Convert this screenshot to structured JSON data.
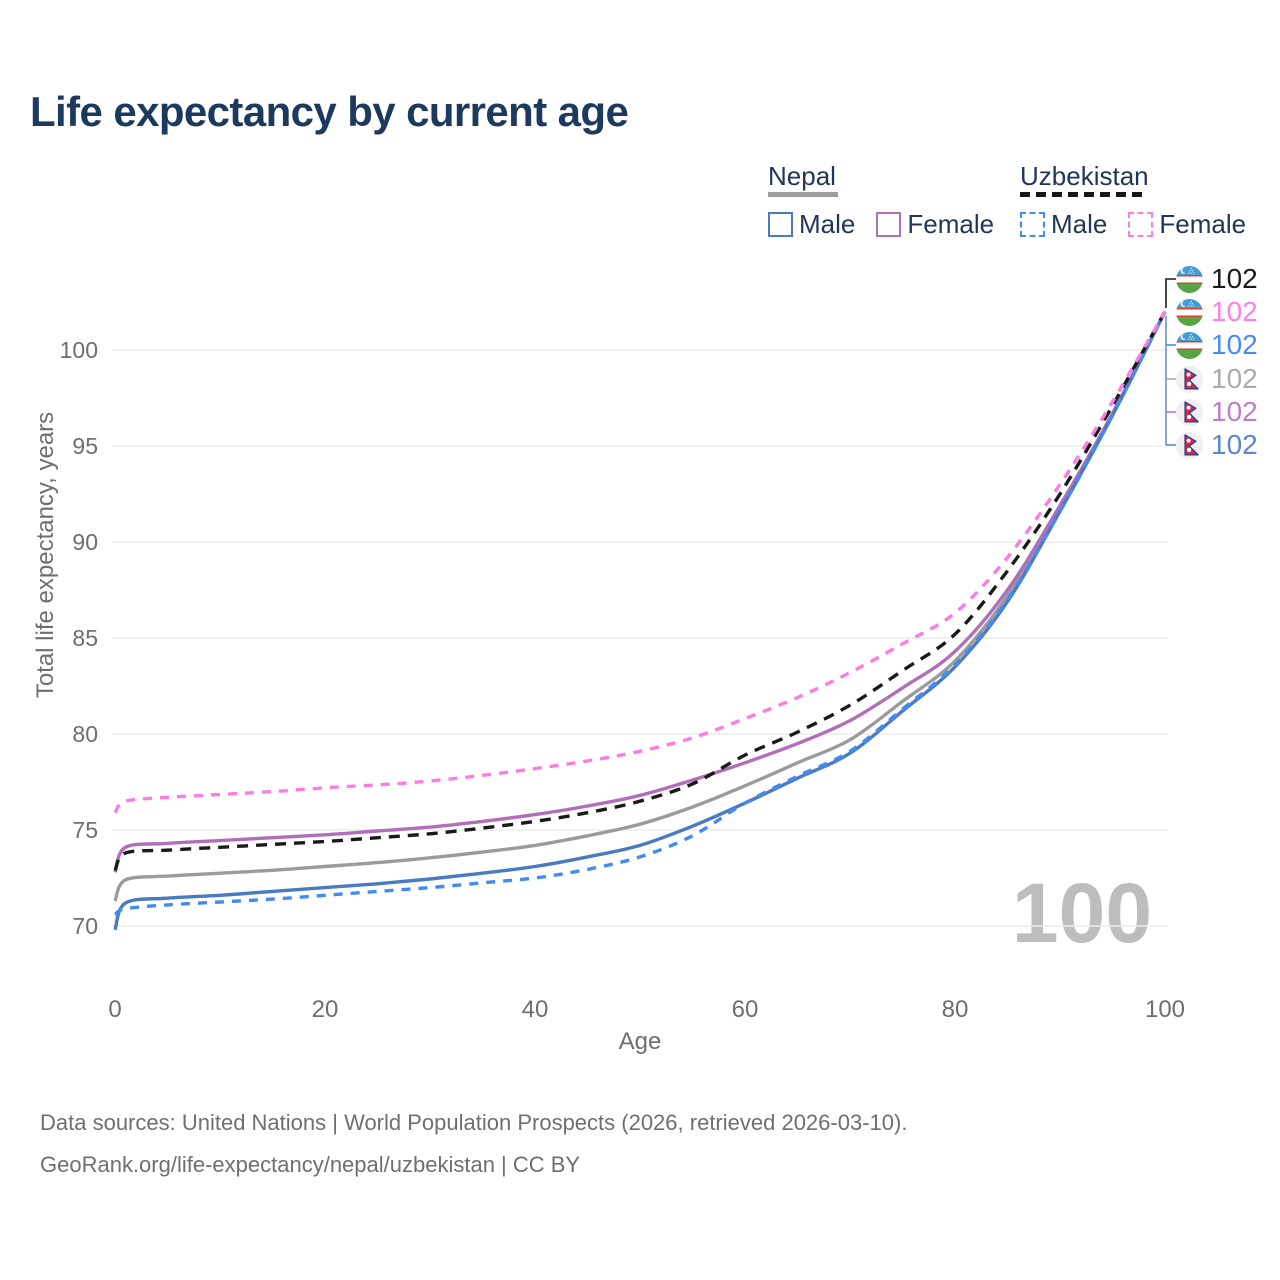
{
  "title": "Life expectancy by current age",
  "legend": {
    "groups": [
      {
        "name": "Nepal",
        "line_style": "solid",
        "underline_color": "#9e9e9e",
        "items": [
          {
            "label": "Male",
            "color": "#4a7bc0"
          },
          {
            "label": "Female",
            "color": "#b06fb8"
          }
        ]
      },
      {
        "name": "Uzbekistan",
        "line_style": "dashed",
        "underline_color": "#161616",
        "items": [
          {
            "label": "Male",
            "color": "#418bf2"
          },
          {
            "label": "Female",
            "color": "#fd7ce0"
          }
        ]
      }
    ]
  },
  "chart_data": {
    "type": "line",
    "title": "Life expectancy by current age",
    "xlabel": "Age",
    "ylabel": "Total life expectancy, years",
    "x_ticks": [
      0,
      20,
      40,
      60,
      80,
      100
    ],
    "y_ticks": [
      70,
      75,
      80,
      85,
      90,
      95,
      100
    ],
    "xlim": [
      0,
      100
    ],
    "ylim": [
      68.5,
      103
    ],
    "grid": "horizontal-only",
    "legend_position": "top-right",
    "watermark": "100",
    "x": [
      0,
      1,
      5,
      10,
      15,
      20,
      25,
      30,
      35,
      40,
      45,
      50,
      55,
      60,
      65,
      70,
      75,
      80,
      85,
      90,
      95,
      100
    ],
    "series": [
      {
        "key": "nepal-total",
        "name": "Nepal — Total",
        "color": "#9b9b9b",
        "dash": "solid",
        "values": [
          71.3,
          72.4,
          72.6,
          72.75,
          72.9,
          73.1,
          73.3,
          73.55,
          73.85,
          74.2,
          74.7,
          75.3,
          76.2,
          77.3,
          78.5,
          79.7,
          81.7,
          83.8,
          87.2,
          91.7,
          96.6,
          102
        ]
      },
      {
        "key": "nepal-female",
        "name": "Nepal — Female",
        "color": "#b06fb8",
        "dash": "solid",
        "values": [
          72.8,
          74.1,
          74.3,
          74.45,
          74.6,
          74.75,
          74.95,
          75.15,
          75.45,
          75.8,
          76.25,
          76.8,
          77.6,
          78.5,
          79.5,
          80.7,
          82.4,
          84.3,
          87.5,
          91.9,
          96.7,
          102
        ]
      },
      {
        "key": "nepal-male",
        "name": "Nepal — Male",
        "color": "#4a7bc0",
        "dash": "solid",
        "values": [
          69.8,
          71.2,
          71.45,
          71.6,
          71.8,
          72.0,
          72.2,
          72.45,
          72.75,
          73.1,
          73.6,
          74.2,
          75.2,
          76.4,
          77.7,
          79.0,
          81.2,
          83.5,
          86.9,
          91.6,
          96.6,
          102
        ]
      },
      {
        "key": "uzbekistan-total",
        "name": "Uzbekistan — Total",
        "color": "#1a1a1a",
        "dash": "11 8",
        "values": [
          72.9,
          73.8,
          73.95,
          74.1,
          74.25,
          74.4,
          74.6,
          74.8,
          75.1,
          75.45,
          75.9,
          76.5,
          77.4,
          78.9,
          80.1,
          81.5,
          83.3,
          85.2,
          88.5,
          92.5,
          97.1,
          102
        ]
      },
      {
        "key": "uzbekistan-male",
        "name": "Uzbekistan — Male",
        "color": "#418bf2",
        "dash": "9 8",
        "values": [
          70.6,
          70.9,
          71.1,
          71.25,
          71.4,
          71.6,
          71.8,
          72.0,
          72.25,
          72.5,
          72.95,
          73.6,
          74.7,
          76.4,
          77.8,
          79.1,
          81.3,
          83.6,
          87.0,
          91.6,
          96.6,
          102
        ]
      },
      {
        "key": "uzbekistan-female",
        "name": "Uzbekistan — Female",
        "color": "#fd7ce0",
        "dash": "9 8",
        "values": [
          75.9,
          76.5,
          76.7,
          76.85,
          77.0,
          77.2,
          77.35,
          77.55,
          77.85,
          78.2,
          78.6,
          79.1,
          79.8,
          80.8,
          81.9,
          83.2,
          84.7,
          86.3,
          89.2,
          93.0,
          97.3,
          102
        ]
      }
    ]
  },
  "end_labels": [
    {
      "flag": "uzbekistan",
      "series": "Uzbekistan Total",
      "value": "102",
      "color": "#1a1a1a"
    },
    {
      "flag": "uzbekistan",
      "series": "Uzbekistan Female",
      "value": "102",
      "color": "#ff80e5"
    },
    {
      "flag": "uzbekistan",
      "series": "Uzbekistan Male",
      "value": "102",
      "color": "#4b8bf5"
    },
    {
      "flag": "nepal",
      "series": "Nepal Total",
      "value": "102",
      "color": "#ababab"
    },
    {
      "flag": "nepal",
      "series": "Nepal Female",
      "value": "102",
      "color": "#bb7fc9"
    },
    {
      "flag": "nepal",
      "series": "Nepal Male",
      "value": "102",
      "color": "#5b87cb"
    }
  ],
  "footer": {
    "line1": "Data sources: United Nations | World Population Prospects (2026, retrieved 2026-03-10).",
    "line2": "GeoRank.org/life-expectancy/nepal/uzbekistan | CC BY"
  }
}
